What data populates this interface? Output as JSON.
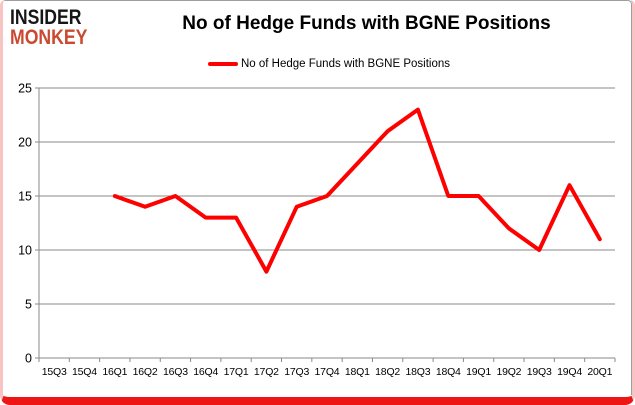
{
  "brand": {
    "line1": "INSIDER",
    "line2": "MONKEY",
    "line1_color": "#161616",
    "line2_color": "#ca4930"
  },
  "header": {
    "title": "No of Hedge Funds with BGNE Positions"
  },
  "legend": {
    "label": "No of Hedge Funds with BGNE Positions",
    "swatch_color": "#fe0000"
  },
  "chart_data": {
    "type": "line",
    "title": "No of Hedge Funds with BGNE Positions",
    "categories": [
      "15Q3",
      "15Q4",
      "16Q1",
      "16Q2",
      "16Q3",
      "16Q4",
      "17Q1",
      "17Q2",
      "17Q3",
      "17Q4",
      "18Q1",
      "18Q2",
      "18Q3",
      "18Q4",
      "19Q1",
      "19Q2",
      "19Q3",
      "19Q4",
      "20Q1"
    ],
    "series": [
      {
        "name": "No of Hedge Funds with BGNE Positions",
        "color": "#fe0000",
        "values": [
          null,
          null,
          15,
          14,
          15,
          13,
          13,
          8,
          14,
          15,
          18,
          21,
          23,
          15,
          15,
          12,
          10,
          16,
          11
        ]
      }
    ],
    "ylim": [
      0,
      25
    ],
    "yticks": [
      0,
      5,
      10,
      15,
      20,
      25
    ],
    "xlabel": "",
    "ylabel": "",
    "grid": true,
    "legend_position": "top"
  },
  "frame": {
    "bottom_bar_color": "#ee1515",
    "side_border_color": "#f8c3c3",
    "chart_border_color": "#9e9e9e",
    "grid_color": "#8a8a8a",
    "axis_color": "#8a8a8a",
    "label_color": "#000000"
  }
}
